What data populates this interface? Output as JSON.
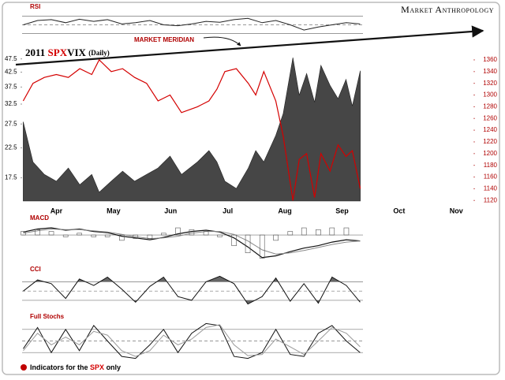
{
  "brand": "Market Anthropology",
  "annotation": "MARKET MERIDIAN",
  "title_prefix": "2011",
  "title_suffix": "(Daily)",
  "footnote_prefix": "Indicators for the",
  "footnote_highlight": "SPX",
  "footnote_suffix": "only",
  "chart_data": [
    {
      "type": "area-line",
      "x": [
        0.42,
        0.59,
        0.79,
        1,
        1.21,
        1.41,
        1.62,
        1.75,
        1.96,
        2.16,
        2.37,
        2.58,
        2.78,
        2.99,
        3.19,
        3.47,
        3.67,
        3.81,
        3.95,
        4.15,
        4.36,
        4.49,
        4.63,
        4.84,
        4.97,
        5.14,
        5.25,
        5.38,
        5.52,
        5.63,
        5.79,
        5.93,
        6.07,
        6.18,
        6.32
      ],
      "series": [
        {
          "name": "VIX",
          "color": "#464646",
          "axis": "y",
          "values": [
            28,
            20,
            18,
            17,
            19,
            16.5,
            18,
            15.5,
            17,
            18.5,
            17,
            18,
            19,
            21,
            18,
            20,
            22,
            20,
            17,
            16,
            19,
            22,
            20,
            25,
            30,
            48,
            35,
            42,
            33,
            45,
            38,
            34,
            40,
            32,
            43
          ]
        },
        {
          "name": "SPX",
          "color": "#d40000",
          "axis": "y2",
          "values": [
            1290,
            1320,
            1330,
            1335,
            1330,
            1345,
            1335,
            1360,
            1340,
            1345,
            1330,
            1320,
            1290,
            1300,
            1270,
            1280,
            1290,
            1310,
            1340,
            1345,
            1320,
            1300,
            1340,
            1290,
            1230,
            1120,
            1190,
            1200,
            1125,
            1200,
            1170,
            1215,
            1195,
            1205,
            1140
          ]
        }
      ],
      "ylim": [
        14.4,
        49
      ],
      "log_scale": true,
      "yticks": [
        17.5,
        22.5,
        27.5,
        32.5,
        37.5,
        42.5,
        47.5
      ],
      "y2lim": [
        1119,
        1368
      ],
      "y2ticks": [
        1120,
        1140,
        1160,
        1180,
        1200,
        1220,
        1240,
        1260,
        1280,
        1300,
        1320,
        1340,
        1360
      ],
      "xlim": [
        0.4,
        8.3
      ],
      "xticks": [
        {
          "value": 1,
          "label": "Apr"
        },
        {
          "value": 2,
          "label": "May"
        },
        {
          "value": 3,
          "label": "Jun"
        },
        {
          "value": 4,
          "label": "Jul"
        },
        {
          "value": 5,
          "label": "Aug"
        },
        {
          "value": 6,
          "label": "Sep"
        },
        {
          "value": 7,
          "label": "Oct"
        },
        {
          "value": 8,
          "label": "Nov"
        }
      ]
    },
    {
      "type": "line",
      "title": "RSI",
      "x": [
        0.42,
        0.67,
        0.91,
        1.16,
        1.4,
        1.65,
        1.89,
        2.14,
        2.38,
        2.63,
        2.87,
        3.12,
        3.36,
        3.61,
        3.85,
        4.1,
        4.34,
        4.59,
        4.83,
        5.08,
        5.32,
        5.57,
        5.81,
        6.06,
        6.3
      ],
      "series": [
        {
          "color": "#222222",
          "values": [
            50,
            60,
            62,
            55,
            63,
            58,
            62,
            52,
            55,
            60,
            50,
            48,
            52,
            58,
            56,
            62,
            65,
            55,
            60,
            50,
            38,
            45,
            50,
            55,
            52
          ]
        }
      ],
      "xlim": [
        0.4,
        6.35
      ],
      "ylim": [
        20,
        80
      ],
      "yticks": [
        30,
        50,
        70
      ]
    },
    {
      "type": "macd",
      "title": "MACD",
      "x": [
        0.42,
        0.67,
        0.91,
        1.16,
        1.4,
        1.65,
        1.89,
        2.14,
        2.38,
        2.63,
        2.87,
        3.12,
        3.36,
        3.61,
        3.85,
        4.1,
        4.34,
        4.59,
        4.83,
        5.08,
        5.32,
        5.57,
        5.81,
        6.06,
        6.3
      ],
      "series": [
        {
          "color": "#111111",
          "values": [
            5,
            10,
            12,
            8,
            10,
            6,
            4,
            -2,
            -5,
            -8,
            -4,
            2,
            6,
            8,
            5,
            -5,
            -20,
            -38,
            -35,
            -28,
            -22,
            -18,
            -12,
            -8,
            -10
          ]
        },
        {
          "color": "#888888",
          "values": [
            3,
            7,
            10,
            9,
            9,
            7,
            5,
            1,
            -3,
            -6,
            -5,
            -2,
            3,
            6,
            6,
            1,
            -10,
            -25,
            -32,
            -30,
            -26,
            -21,
            -16,
            -12,
            -10
          ]
        },
        {
          "color": "#555555",
          "bars": true,
          "values": [
            2,
            3,
            2,
            -1,
            1,
            -1,
            -1,
            -3,
            -2,
            -2,
            1,
            4,
            3,
            2,
            -1,
            -6,
            -10,
            -13,
            -3,
            2,
            4,
            3,
            4,
            4,
            0
          ]
        }
      ],
      "xlim": [
        0.4,
        6.35
      ],
      "ylim": [
        -45,
        20
      ],
      "yticks": [
        0
      ]
    },
    {
      "type": "cci",
      "title": "CCI",
      "x": [
        0.42,
        0.67,
        0.91,
        1.16,
        1.4,
        1.65,
        1.89,
        2.14,
        2.38,
        2.63,
        2.87,
        3.12,
        3.36,
        3.61,
        3.85,
        4.1,
        4.34,
        4.59,
        4.83,
        5.08,
        5.32,
        5.57,
        5.81,
        6.06,
        6.3
      ],
      "series": [
        {
          "color": "#111111",
          "values": [
            0,
            120,
            80,
            -80,
            130,
            60,
            150,
            20,
            -120,
            50,
            150,
            -60,
            -100,
            100,
            160,
            80,
            -140,
            -60,
            140,
            -110,
            80,
            -130,
            150,
            60,
            -120
          ]
        }
      ],
      "xlim": [
        0.4,
        6.35
      ],
      "ylim": [
        -160,
        180
      ],
      "yticks": [
        -100,
        0,
        100
      ]
    },
    {
      "type": "line",
      "title": "Full Stochs",
      "x": [
        0.42,
        0.67,
        0.91,
        1.16,
        1.4,
        1.65,
        1.89,
        2.14,
        2.38,
        2.63,
        2.87,
        3.12,
        3.36,
        3.61,
        3.85,
        4.1,
        4.34,
        4.59,
        4.83,
        5.08,
        5.32,
        5.57,
        5.81,
        6.06,
        6.3
      ],
      "series": [
        {
          "color": "#111111",
          "values": [
            30,
            85,
            20,
            80,
            25,
            90,
            50,
            10,
            5,
            40,
            80,
            20,
            70,
            95,
            90,
            10,
            5,
            20,
            80,
            15,
            10,
            70,
            90,
            50,
            20
          ]
        },
        {
          "color": "#999999",
          "values": [
            25,
            70,
            40,
            60,
            40,
            75,
            65,
            25,
            10,
            25,
            65,
            40,
            55,
            85,
            92,
            40,
            12,
            15,
            55,
            35,
            15,
            50,
            85,
            70,
            35
          ]
        }
      ],
      "xlim": [
        0.4,
        6.35
      ],
      "ylim": [
        0,
        100
      ],
      "yticks": [
        20,
        50,
        80
      ]
    }
  ]
}
